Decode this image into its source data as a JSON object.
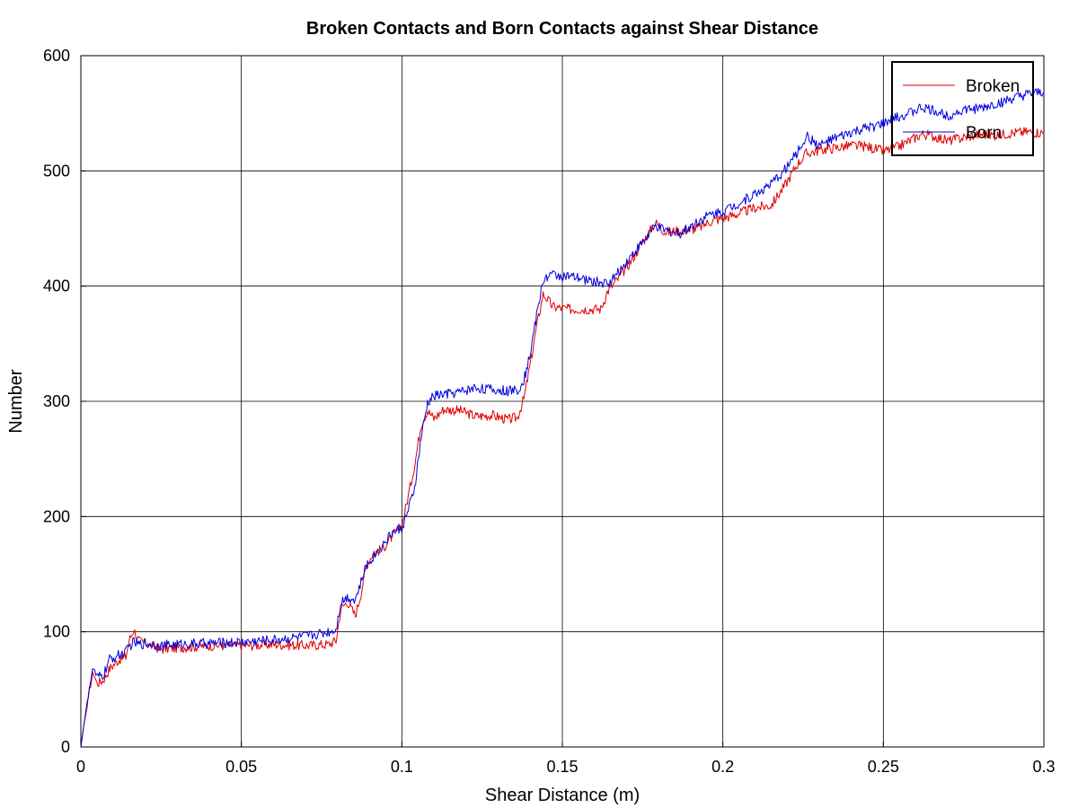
{
  "chart_data": {
    "type": "line",
    "title": "Broken Contacts and Born Contacts against Shear Distance",
    "xlabel": "Shear Distance (m)",
    "ylabel": "Number",
    "xlim": [
      0,
      0.3
    ],
    "ylim": [
      0,
      600
    ],
    "x_ticks": [
      "0",
      "0.05",
      "0.1",
      "0.15",
      "0.2",
      "0.25",
      "0.3"
    ],
    "y_ticks": [
      "0",
      "100",
      "200",
      "300",
      "400",
      "500",
      "600"
    ],
    "grid": true,
    "legend_position": "top-right",
    "series": [
      {
        "name": "Broken",
        "color": "#e00000",
        "points": [
          [
            0,
            0
          ],
          [
            0.001,
            20
          ],
          [
            0.002,
            35
          ],
          [
            0.003,
            55
          ],
          [
            0.004,
            65
          ],
          [
            0.005,
            55
          ],
          [
            0.007,
            58
          ],
          [
            0.009,
            68
          ],
          [
            0.012,
            76
          ],
          [
            0.014,
            78
          ],
          [
            0.015,
            92
          ],
          [
            0.0165,
            102
          ],
          [
            0.018,
            92
          ],
          [
            0.02,
            90
          ],
          [
            0.025,
            85
          ],
          [
            0.03,
            86
          ],
          [
            0.04,
            88
          ],
          [
            0.05,
            88
          ],
          [
            0.06,
            89
          ],
          [
            0.07,
            88
          ],
          [
            0.077,
            89
          ],
          [
            0.0795,
            92
          ],
          [
            0.081,
            120
          ],
          [
            0.083,
            126
          ],
          [
            0.0855,
            114
          ],
          [
            0.087,
            130
          ],
          [
            0.089,
            158
          ],
          [
            0.091,
            168
          ],
          [
            0.094,
            172
          ],
          [
            0.097,
            183
          ],
          [
            0.1,
            192
          ],
          [
            0.102,
            218
          ],
          [
            0.104,
            245
          ],
          [
            0.106,
            280
          ],
          [
            0.108,
            292
          ],
          [
            0.11,
            285
          ],
          [
            0.113,
            293
          ],
          [
            0.118,
            292
          ],
          [
            0.123,
            287
          ],
          [
            0.128,
            288
          ],
          [
            0.133,
            284
          ],
          [
            0.136,
            286
          ],
          [
            0.138,
            302
          ],
          [
            0.14,
            332
          ],
          [
            0.142,
            365
          ],
          [
            0.144,
            393
          ],
          [
            0.145,
            390
          ],
          [
            0.147,
            382
          ],
          [
            0.152,
            380
          ],
          [
            0.158,
            380
          ],
          [
            0.162,
            380
          ],
          [
            0.164,
            395
          ],
          [
            0.167,
            405
          ],
          [
            0.171,
            420
          ],
          [
            0.175,
            438
          ],
          [
            0.179,
            455
          ],
          [
            0.182,
            447
          ],
          [
            0.187,
            448
          ],
          [
            0.192,
            450
          ],
          [
            0.196,
            456
          ],
          [
            0.2,
            459
          ],
          [
            0.205,
            463
          ],
          [
            0.21,
            468
          ],
          [
            0.215,
            470
          ],
          [
            0.219,
            486
          ],
          [
            0.223,
            505
          ],
          [
            0.226,
            515
          ],
          [
            0.23,
            518
          ],
          [
            0.235,
            520
          ],
          [
            0.24,
            522
          ],
          [
            0.245,
            521
          ],
          [
            0.25,
            517
          ],
          [
            0.254,
            520
          ],
          [
            0.258,
            526
          ],
          [
            0.262,
            532
          ],
          [
            0.266,
            530
          ],
          [
            0.27,
            526
          ],
          [
            0.275,
            529
          ],
          [
            0.28,
            532
          ],
          [
            0.285,
            531
          ],
          [
            0.29,
            533
          ],
          [
            0.295,
            534
          ],
          [
            0.3,
            533
          ]
        ]
      },
      {
        "name": "Born",
        "color": "#0000e0",
        "points": [
          [
            0,
            0
          ],
          [
            0.001,
            20
          ],
          [
            0.002,
            40
          ],
          [
            0.003,
            58
          ],
          [
            0.004,
            68
          ],
          [
            0.005,
            60
          ],
          [
            0.007,
            62
          ],
          [
            0.009,
            76
          ],
          [
            0.012,
            80
          ],
          [
            0.014,
            82
          ],
          [
            0.015,
            87
          ],
          [
            0.0165,
            91
          ],
          [
            0.018,
            89
          ],
          [
            0.02,
            90
          ],
          [
            0.025,
            88
          ],
          [
            0.03,
            89
          ],
          [
            0.04,
            90
          ],
          [
            0.05,
            91
          ],
          [
            0.06,
            93
          ],
          [
            0.07,
            96
          ],
          [
            0.077,
            100
          ],
          [
            0.0795,
            102
          ],
          [
            0.081,
            126
          ],
          [
            0.083,
            130
          ],
          [
            0.0855,
            128
          ],
          [
            0.087,
            140
          ],
          [
            0.089,
            158
          ],
          [
            0.091,
            165
          ],
          [
            0.094,
            175
          ],
          [
            0.097,
            186
          ],
          [
            0.1,
            190
          ],
          [
            0.102,
            205
          ],
          [
            0.104,
            225
          ],
          [
            0.106,
            268
          ],
          [
            0.108,
            298
          ],
          [
            0.11,
            305
          ],
          [
            0.113,
            306
          ],
          [
            0.118,
            308
          ],
          [
            0.123,
            312
          ],
          [
            0.128,
            310
          ],
          [
            0.133,
            309
          ],
          [
            0.136,
            310
          ],
          [
            0.138,
            318
          ],
          [
            0.14,
            342
          ],
          [
            0.142,
            375
          ],
          [
            0.144,
            405
          ],
          [
            0.145,
            408
          ],
          [
            0.147,
            410
          ],
          [
            0.152,
            408
          ],
          [
            0.158,
            405
          ],
          [
            0.162,
            403
          ],
          [
            0.164,
            402
          ],
          [
            0.167,
            410
          ],
          [
            0.171,
            425
          ],
          [
            0.175,
            438
          ],
          [
            0.179,
            452
          ],
          [
            0.182,
            448
          ],
          [
            0.187,
            446
          ],
          [
            0.192,
            456
          ],
          [
            0.196,
            462
          ],
          [
            0.2,
            465
          ],
          [
            0.205,
            472
          ],
          [
            0.21,
            480
          ],
          [
            0.215,
            488
          ],
          [
            0.219,
            500
          ],
          [
            0.223,
            515
          ],
          [
            0.226,
            530
          ],
          [
            0.23,
            522
          ],
          [
            0.235,
            528
          ],
          [
            0.24,
            533
          ],
          [
            0.245,
            537
          ],
          [
            0.25,
            541
          ],
          [
            0.254,
            546
          ],
          [
            0.258,
            550
          ],
          [
            0.262,
            555
          ],
          [
            0.266,
            552
          ],
          [
            0.27,
            548
          ],
          [
            0.275,
            553
          ],
          [
            0.28,
            554
          ],
          [
            0.285,
            558
          ],
          [
            0.29,
            562
          ],
          [
            0.295,
            566
          ],
          [
            0.3,
            568
          ]
        ]
      }
    ]
  }
}
